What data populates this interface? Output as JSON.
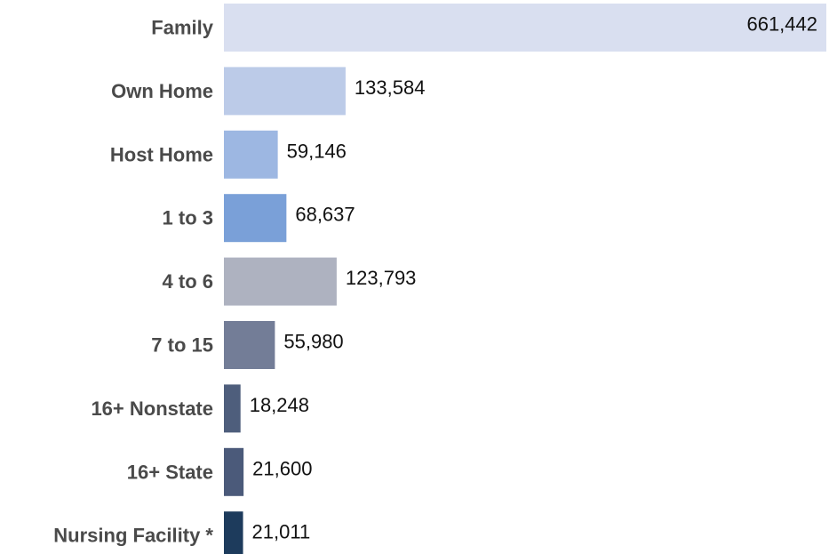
{
  "chart_data": {
    "type": "bar",
    "orientation": "horizontal",
    "categories": [
      "Family",
      "Own Home",
      "Host Home",
      "1 to 3",
      "4 to 6",
      "7 to 15",
      "16+ Nonstate",
      "16+ State",
      "Nursing Facility *"
    ],
    "values": [
      661442,
      133584,
      59146,
      68637,
      123793,
      55980,
      18248,
      21600,
      21011
    ],
    "value_labels": [
      "661,442",
      "133,584",
      "59,146",
      "68,637",
      "123,793",
      "55,980",
      "18,248",
      "21,600",
      "21,011"
    ],
    "colors": [
      "#d9dff0",
      "#bccbe8",
      "#9db7e2",
      "#7aa0d8",
      "#aeb2c0",
      "#737d97",
      "#4e5e7c",
      "#4b5a7a",
      "#1d3b5c"
    ],
    "title": "",
    "xlabel": "",
    "ylabel": "",
    "xlim": [
      0,
      661442
    ],
    "grid": false,
    "legend": "none"
  }
}
